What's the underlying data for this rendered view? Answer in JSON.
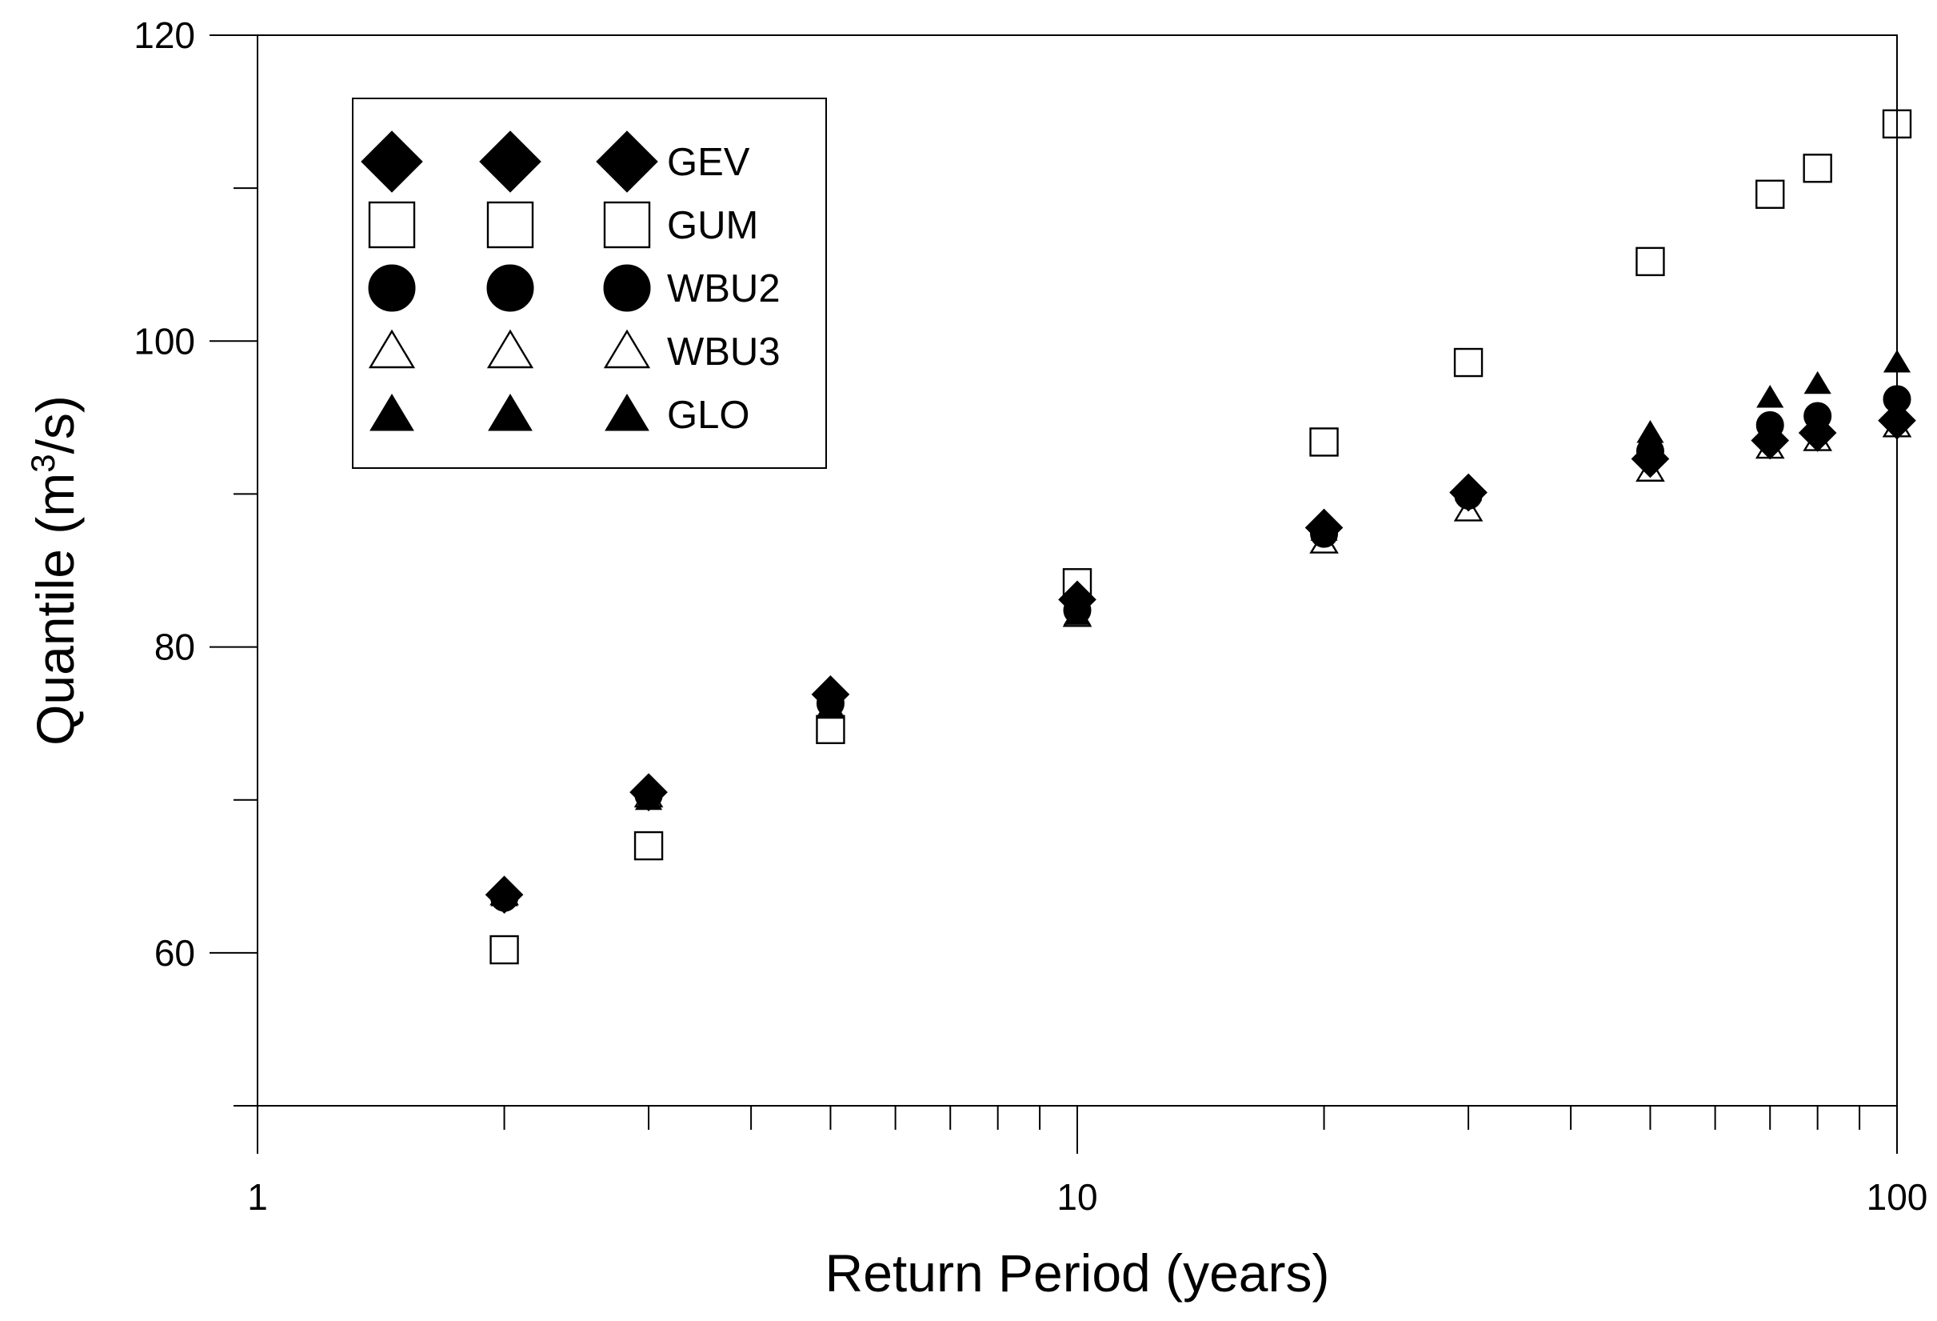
{
  "chart_data": {
    "type": "scatter",
    "xlabel": "Return Period (years)",
    "ylabel": {
      "main": "Quantile (m",
      "sup": "3",
      "tail": "/s)"
    },
    "x_scale": "log",
    "xlim": [
      1,
      100
    ],
    "ylim": [
      50,
      120
    ],
    "x_ticks": [
      {
        "value": 1,
        "label": "1"
      },
      {
        "value": 10,
        "label": "10"
      },
      {
        "value": 100,
        "label": "100"
      }
    ],
    "x_minor_ticks": [
      2,
      3,
      4,
      5,
      6,
      7,
      8,
      9,
      20,
      30,
      40,
      50,
      60,
      70,
      80,
      90
    ],
    "y_ticks": [
      {
        "value": 60,
        "label": "60"
      },
      {
        "value": 80,
        "label": "80"
      },
      {
        "value": 100,
        "label": "100"
      },
      {
        "value": 120,
        "label": "120"
      }
    ],
    "y_minor_ticks": [
      50,
      70,
      90,
      110
    ],
    "grid": false,
    "legend_position": "top-left",
    "series": [
      {
        "name": "GEV",
        "marker": "diamond-filled",
        "x": [
          2,
          3,
          5,
          10,
          20,
          30,
          50,
          70,
          80,
          100
        ],
        "y": [
          63.8,
          70.5,
          76.9,
          83.1,
          87.8,
          90.1,
          92.3,
          93.5,
          94.0,
          94.8
        ]
      },
      {
        "name": "GUM",
        "marker": "square-open",
        "x": [
          2,
          3,
          5,
          10,
          20,
          30,
          50,
          70,
          80,
          100
        ],
        "y": [
          60.2,
          67.0,
          74.6,
          84.2,
          93.4,
          98.6,
          105.2,
          109.6,
          111.3,
          114.2
        ]
      },
      {
        "name": "WBU2",
        "marker": "circle-filled",
        "x": [
          2,
          3,
          5,
          10,
          20,
          30,
          50,
          70,
          80,
          100
        ],
        "y": [
          63.6,
          70.3,
          76.3,
          82.4,
          87.4,
          89.9,
          92.8,
          94.5,
          95.1,
          96.2
        ]
      },
      {
        "name": "WBU3",
        "marker": "triangle-open",
        "x": [
          2,
          3,
          5,
          10,
          20,
          30,
          50,
          70,
          80,
          100
        ],
        "y": [
          63.8,
          70.2,
          76.0,
          82.0,
          86.8,
          88.9,
          91.5,
          93.0,
          93.5,
          94.4
        ]
      },
      {
        "name": "GLO",
        "marker": "triangle-filled",
        "x": [
          2,
          3,
          5,
          10,
          20,
          30,
          50,
          70,
          80,
          100
        ],
        "y": [
          63.7,
          70.0,
          76.1,
          82.1,
          87.6,
          90.2,
          94.0,
          96.3,
          97.2,
          98.6
        ]
      }
    ]
  }
}
